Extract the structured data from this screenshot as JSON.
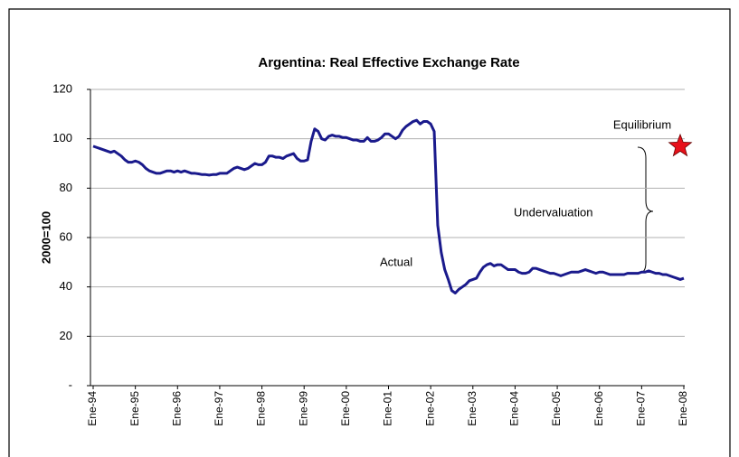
{
  "chart_data": {
    "type": "line",
    "title": "Argentina: Real Effective Exchange Rate",
    "y_label": "2000=100",
    "categories": [
      "Ene-94",
      null,
      null,
      null,
      null,
      null,
      null,
      null,
      null,
      null,
      null,
      null,
      "Ene-95",
      null,
      null,
      null,
      null,
      null,
      null,
      null,
      null,
      null,
      null,
      null,
      "Ene-96",
      null,
      null,
      null,
      null,
      null,
      null,
      null,
      null,
      null,
      null,
      null,
      "Ene-97",
      null,
      null,
      null,
      null,
      null,
      null,
      null,
      null,
      null,
      null,
      null,
      "Ene-98",
      null,
      null,
      null,
      null,
      null,
      null,
      null,
      null,
      null,
      null,
      null,
      "Ene-99",
      null,
      null,
      null,
      null,
      null,
      null,
      null,
      null,
      null,
      null,
      null,
      "Ene-00",
      null,
      null,
      null,
      null,
      null,
      null,
      null,
      null,
      null,
      null,
      null,
      "Ene-01",
      null,
      null,
      null,
      null,
      null,
      null,
      null,
      null,
      null,
      null,
      null,
      "Ene-02",
      null,
      null,
      null,
      null,
      null,
      null,
      null,
      null,
      null,
      null,
      null,
      "Ene-03",
      null,
      null,
      null,
      null,
      null,
      null,
      null,
      null,
      null,
      null,
      null,
      "Ene-04",
      null,
      null,
      null,
      null,
      null,
      null,
      null,
      null,
      null,
      null,
      null,
      "Ene-05",
      null,
      null,
      null,
      null,
      null,
      null,
      null,
      null,
      null,
      null,
      null,
      "Ene-06",
      null,
      null,
      null,
      null,
      null,
      null,
      null,
      null,
      null,
      null,
      null,
      "Ene-07",
      null,
      null,
      null,
      null,
      null,
      null,
      null,
      null,
      null,
      null,
      null,
      "Ene-08"
    ],
    "series": [
      {
        "name": "Actual",
        "color": "#1a1a8c",
        "values": [
          97,
          96.5,
          96,
          95.5,
          95,
          94.5,
          95,
          94,
          93,
          91.5,
          90.5,
          90.5,
          91,
          90.5,
          89.5,
          88,
          87,
          86.5,
          86,
          86,
          86.5,
          87,
          87,
          86.5,
          87,
          86.5,
          87,
          86.5,
          86,
          86,
          85.8,
          85.5,
          85.5,
          85.3,
          85.5,
          85.5,
          86,
          86,
          86,
          87,
          88,
          88.5,
          88,
          87.5,
          88,
          89,
          90,
          89.5,
          89.5,
          90.5,
          93,
          93,
          92.5,
          92.5,
          92,
          93,
          93.5,
          94,
          92,
          91,
          91,
          91.5,
          99,
          104,
          103,
          100,
          99.5,
          101,
          101.5,
          101,
          101,
          100.5,
          100.5,
          100,
          99.5,
          99.5,
          99,
          99,
          100.5,
          99,
          99,
          99.5,
          100.5,
          102,
          102,
          101,
          100,
          101,
          103.5,
          105,
          106,
          107,
          107.5,
          106,
          107,
          107,
          106,
          103,
          65,
          54,
          47,
          43,
          38.5,
          37.5,
          39,
          40,
          41,
          42.5,
          43,
          43.5,
          46,
          48,
          49,
          49.5,
          48.5,
          49,
          49,
          48,
          47,
          47,
          47,
          46,
          45.5,
          45.5,
          46,
          47.5,
          47.5,
          47,
          46.5,
          46,
          45.5,
          45.5,
          45,
          44.5,
          45,
          45.5,
          46,
          46,
          46,
          46.5,
          47,
          46.5,
          46,
          45.5,
          46,
          46,
          45.5,
          45,
          45,
          45,
          45,
          45,
          45.5,
          45.5,
          45.5,
          45.5,
          46,
          46,
          46.5,
          46,
          45.5,
          45.5,
          45,
          45,
          44.5,
          44,
          43.5,
          43,
          43.5
        ]
      }
    ],
    "equilibrium": {
      "label": "Equilibrium",
      "value": 97,
      "color": "#e8101a"
    },
    "annotation": "Undervaluation",
    "ylim": [
      0,
      120
    ],
    "yticks": [
      {
        "value": 0,
        "label": "-"
      },
      20,
      40,
      60,
      80,
      100,
      120
    ],
    "grid": true
  }
}
